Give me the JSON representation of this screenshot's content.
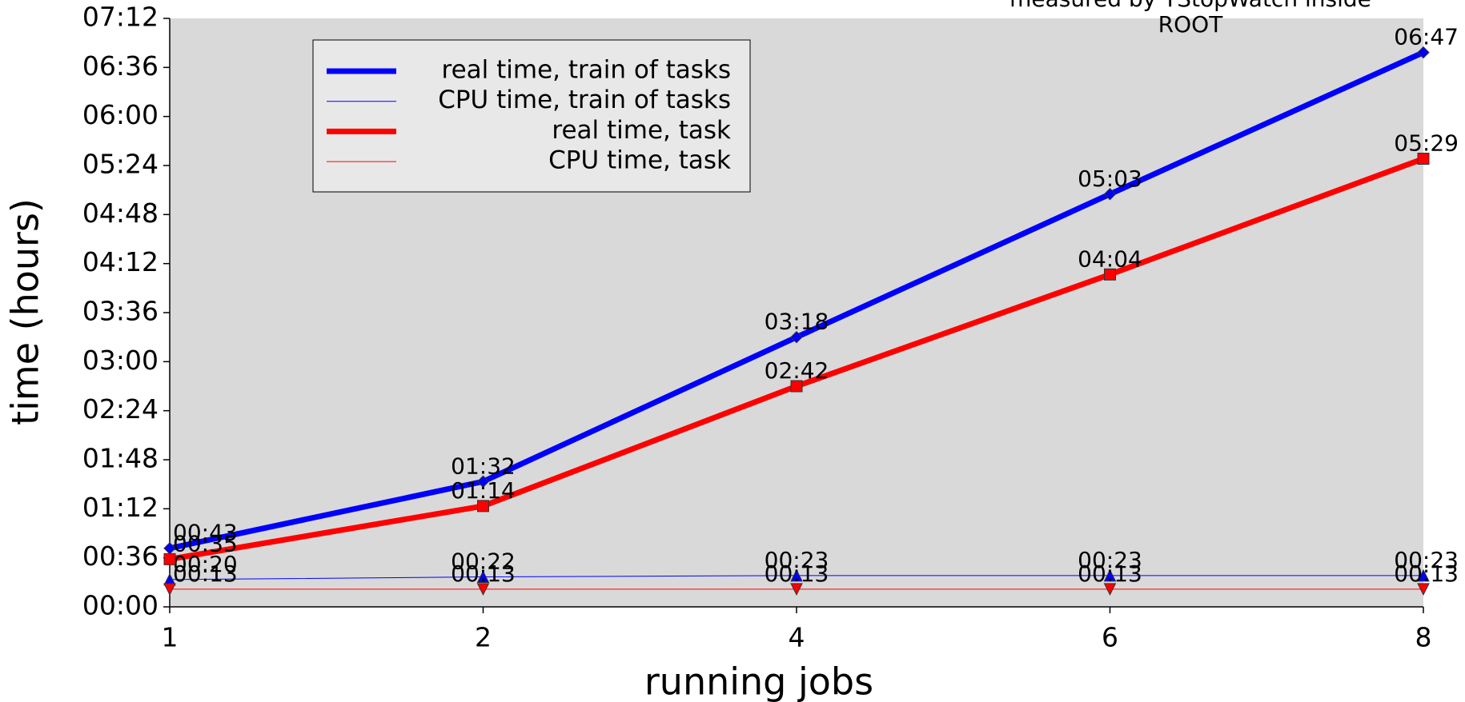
{
  "chart_data": {
    "type": "line",
    "annotation": [
      "measured by TStopWatch inside",
      "ROOT"
    ],
    "xlabel": "running jobs",
    "ylabel": "time (hours)",
    "categories": [
      "1",
      "2",
      "4",
      "6",
      "8"
    ],
    "ylim": [
      0,
      432
    ],
    "yticks": [
      {
        "value": 0,
        "label": "00:00"
      },
      {
        "value": 36,
        "label": "00:36"
      },
      {
        "value": 72,
        "label": "01:12"
      },
      {
        "value": 108,
        "label": "01:48"
      },
      {
        "value": 144,
        "label": "02:24"
      },
      {
        "value": 180,
        "label": "03:00"
      },
      {
        "value": 216,
        "label": "03:36"
      },
      {
        "value": 252,
        "label": "04:12"
      },
      {
        "value": 288,
        "label": "04:48"
      },
      {
        "value": 324,
        "label": "05:24"
      },
      {
        "value": 360,
        "label": "06:00"
      },
      {
        "value": 396,
        "label": "06:36"
      },
      {
        "value": 432,
        "label": "07:12"
      }
    ],
    "series": [
      {
        "name": "real time, train of tasks",
        "color": "#0000ff",
        "line_width": 7,
        "marker": "diamond",
        "values": [
          43,
          92,
          198,
          303,
          407
        ],
        "value_labels": [
          "00:43",
          "01:32",
          "03:18",
          "05:03",
          "06:47"
        ]
      },
      {
        "name": "CPU time, train of tasks",
        "color": "#0000ff",
        "line_width": 1,
        "marker": "triangle-up",
        "values": [
          20,
          22,
          23,
          23,
          23
        ],
        "value_labels": [
          "00:20",
          "00:22",
          "00:23",
          "00:23",
          "00:23"
        ]
      },
      {
        "name": "real time, task",
        "color": "#ff0000",
        "line_width": 7,
        "marker": "square",
        "values": [
          35,
          74,
          162,
          244,
          329
        ],
        "value_labels": [
          "00:35",
          "01:14",
          "02:42",
          "04:04",
          "05:29"
        ]
      },
      {
        "name": "CPU time, task",
        "color": "#ff0000",
        "line_width": 1,
        "marker": "triangle-down",
        "values": [
          13,
          13,
          13,
          13,
          13
        ],
        "value_labels": [
          "00:13",
          "00:13",
          "00:13",
          "00:13",
          "00:13"
        ]
      }
    ]
  }
}
